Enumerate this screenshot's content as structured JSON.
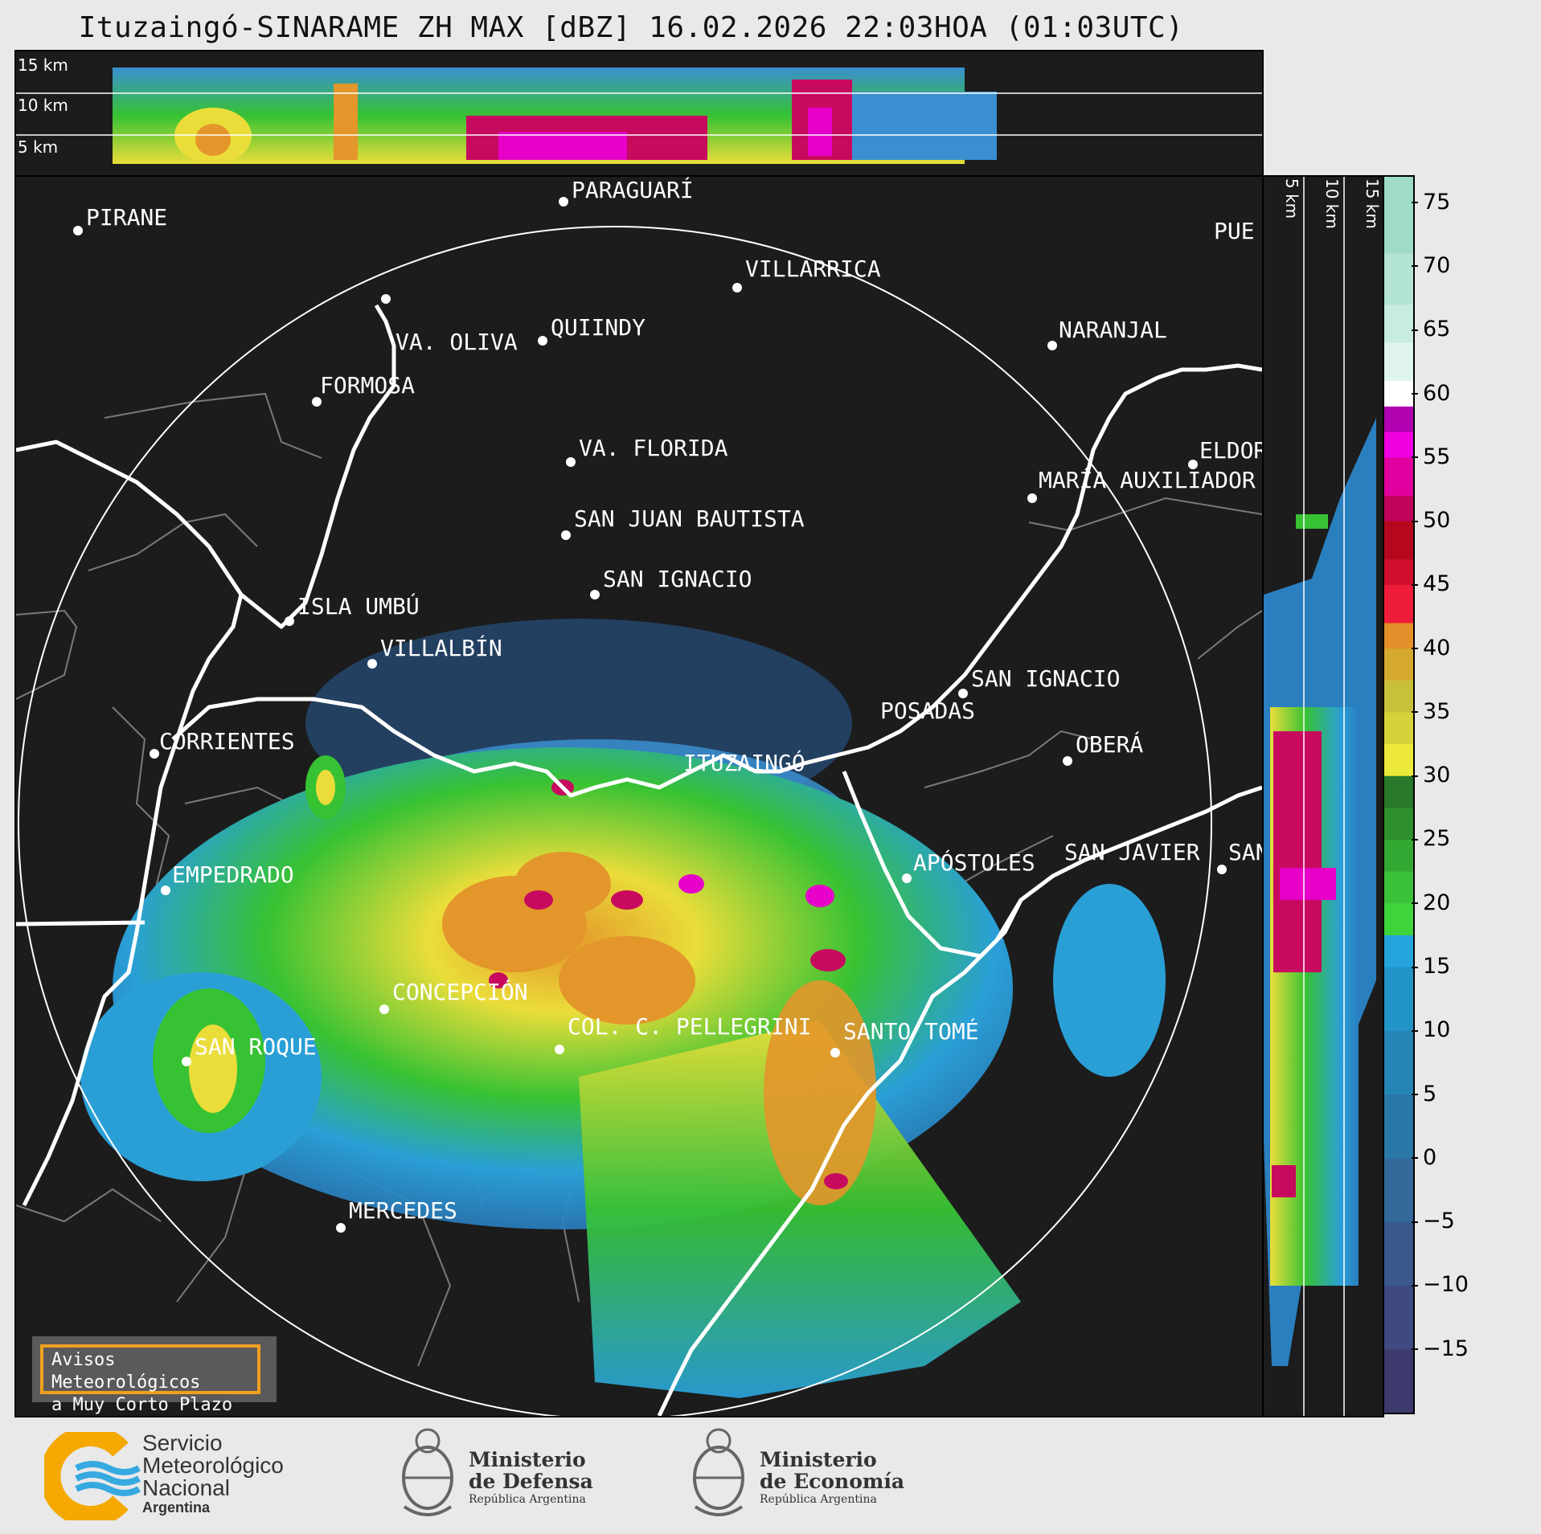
{
  "title": "Ituzaingó-SINARAME ZH MAX [dBZ] 16.02.2026 22:03HOA (01:03UTC)",
  "top_panel": {
    "altitudes": [
      "15 km",
      "10 km",
      "5 km"
    ]
  },
  "right_panel": {
    "altitudes": [
      "5 km",
      "10 km",
      "15 km"
    ]
  },
  "places": [
    {
      "name": "PARAGUARÍ"
    },
    {
      "name": "PIRANE"
    },
    {
      "name": "VILLARRICA"
    },
    {
      "name": "VA. OLIVA"
    },
    {
      "name": "QUIINDY"
    },
    {
      "name": "NARANJAL"
    },
    {
      "name": "FORMOSA"
    },
    {
      "name": "VA. FLORIDA"
    },
    {
      "name": "ELDOR"
    },
    {
      "name": "MARÍA AUXILIADOR"
    },
    {
      "name": "SAN JUAN BAUTISTA"
    },
    {
      "name": "SAN IGNACIO"
    },
    {
      "name": "ISLA UMBÚ"
    },
    {
      "name": "VILLALBÍN"
    },
    {
      "name": "SAN IGNACIO"
    },
    {
      "name": "POSADAS"
    },
    {
      "name": "CORRIENTES"
    },
    {
      "name": "ITUZAINGÓ"
    },
    {
      "name": "OBERÁ"
    },
    {
      "name": "EMPEDRADO"
    },
    {
      "name": "APÓSTOLES"
    },
    {
      "name": "SAN JAVIER"
    },
    {
      "name": "SAN"
    },
    {
      "name": "CONCEPCIÓN"
    },
    {
      "name": "COL. C. PELLEGRINI"
    },
    {
      "name": "SANTO TOMÉ"
    },
    {
      "name": "SAN ROQUE"
    },
    {
      "name": "MERCEDES"
    },
    {
      "name": "PUE"
    }
  ],
  "colorbar": {
    "unit": "dBZ",
    "ticks": [
      "75",
      "70",
      "65",
      "60",
      "55",
      "50",
      "45",
      "40",
      "35",
      "30",
      "25",
      "20",
      "15",
      "10",
      "5",
      "0",
      "−5",
      "−10",
      "−15"
    ],
    "range": [
      -20,
      77
    ]
  },
  "aviso": {
    "line1": "Avisos Meteorológicos",
    "line2": "a Muy Corto Plazo"
  },
  "footer": {
    "smn": {
      "line1": "Servicio",
      "line2": "Meteorológico",
      "line3": "Nacional",
      "line4": "Argentina"
    },
    "defensa": {
      "line1": "Ministerio",
      "line2": "de Defensa",
      "line3": "República Argentina"
    },
    "economia": {
      "line1": "Ministerio",
      "line2": "de Economía",
      "line3": "República Argentina"
    }
  },
  "colors": {
    "background": "#1c1c1c",
    "accent_aviso": "#f0a020",
    "smn_orange": "#f5a800",
    "smn_blue": "#36a9e1"
  }
}
